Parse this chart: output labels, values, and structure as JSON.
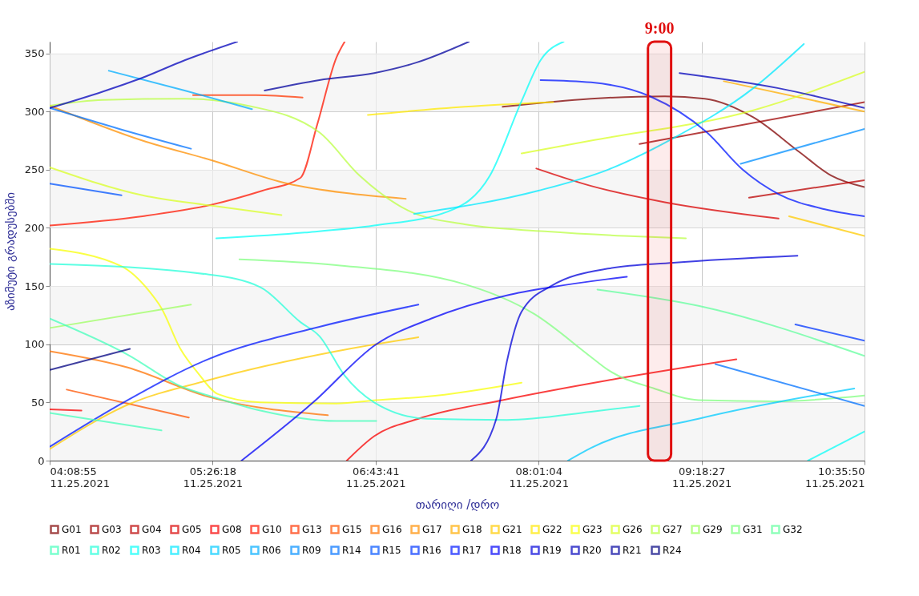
{
  "chart_data": {
    "type": "line",
    "xlabel": "თარიღი /დრო",
    "ylabel": "აზიმუტი გრადუსებში",
    "xlim": [
      "2021-11-25T04:08:55",
      "2021-11-25T10:35:50"
    ],
    "ylim": [
      0,
      360
    ],
    "xticks": [
      {
        "value": "2021-11-25T04:08:55",
        "label": "04:08:55\n11.25.2021"
      },
      {
        "value": "2021-11-25T05:26:18",
        "label": "05:26:18\n11.25.2021"
      },
      {
        "value": "2021-11-25T06:43:41",
        "label": "06:43:41\n11.25.2021"
      },
      {
        "value": "2021-11-25T08:01:04",
        "label": "08:01:04\n11.25.2021"
      },
      {
        "value": "2021-11-25T09:18:27",
        "label": "09:18:27\n11.25.2021"
      },
      {
        "value": "2021-11-25T10:35:50",
        "label": "10:35:50\n11.25.2021"
      }
    ],
    "yticks": [
      0,
      50,
      100,
      150,
      200,
      250,
      300,
      350
    ],
    "grid": true,
    "legend": "bottom",
    "bands": [
      {
        "axis": "y",
        "from": 0,
        "to": 50,
        "color": "#f2f2f2"
      },
      {
        "axis": "y",
        "from": 100,
        "to": 150,
        "color": "#f2f2f2"
      },
      {
        "axis": "y",
        "from": 200,
        "to": 250,
        "color": "#f2f2f2"
      },
      {
        "axis": "y",
        "from": 300,
        "to": 350,
        "color": "#f2f2f2"
      },
      {
        "axis": "x",
        "from": "2021-11-25T08:53",
        "to": "2021-11-25T09:04",
        "label": "9:00",
        "color": "#e01010"
      }
    ],
    "series": [
      {
        "name": "G01",
        "color": "#800000",
        "x": [
          "2021-11-25T07:44",
          "2021-11-25T08:26",
          "2021-11-25T09:01",
          "2021-11-25T09:20",
          "2021-11-25T09:43",
          "2021-11-25T10:05",
          "2021-11-25T10:20",
          "2021-11-25T10:35:50"
        ],
        "values": [
          304,
          311,
          313,
          311,
          295,
          265,
          245,
          235
        ]
      },
      {
        "name": "G03",
        "color": "#9e0000",
        "x": [
          "2021-11-25T08:49",
          "2021-11-25T10:35:50"
        ],
        "values": [
          272,
          308
        ]
      },
      {
        "name": "G04",
        "color": "#bb0000",
        "x": [
          "2021-11-25T09:41",
          "2021-11-25T10:35:50"
        ],
        "values": [
          226,
          241
        ]
      },
      {
        "name": "G05",
        "color": "#da0000",
        "x": [
          "2021-11-25T08:00",
          "2021-11-25T08:26",
          "2021-11-25T09:01",
          "2021-11-25T09:55"
        ],
        "values": [
          251,
          236,
          222,
          208
        ]
      },
      {
        "name": "G08",
        "color": "#f80000",
        "x": [
          "2021-11-25T06:30",
          "2021-11-25T06:43",
          "2021-11-25T07:04",
          "2021-11-25T07:44",
          "2021-11-25T08:34",
          "2021-11-25T09:35"
        ],
        "values": [
          0,
          21,
          36,
          52,
          69,
          87
        ]
      },
      {
        "name": "G10",
        "color": "#ff1600",
        "x": [
          "2021-11-25T04:09",
          "2021-11-25T04:53",
          "2021-11-25T05:26",
          "2021-11-25T05:50",
          "2021-11-25T06:08",
          "2021-11-25T06:16",
          "2021-11-25T06:25",
          "2021-11-25T06:29"
        ],
        "values": [
          202,
          210,
          220,
          232,
          243,
          289,
          346,
          360
        ]
      },
      {
        "name": "G13",
        "color": "#ff3500",
        "x": [
          "2021-11-25T05:17",
          "2021-11-25T05:47",
          "2021-11-25T06:09"
        ],
        "values": [
          314,
          314,
          312
        ]
      },
      {
        "name": "G15",
        "color": "#ff5300",
        "x": [
          "2021-11-25T04:17",
          "2021-11-25T05:15"
        ],
        "values": [
          61,
          37
        ]
      },
      {
        "name": "G16",
        "color": "#ff7100",
        "x": [
          "2021-11-25T04:09",
          "2021-11-25T04:46",
          "2021-11-25T05:24",
          "2021-11-25T06:21"
        ],
        "values": [
          94,
          80,
          55,
          39
        ]
      },
      {
        "name": "G17",
        "color": "#ff8f00",
        "x": [
          "2021-11-25T04:09",
          "2021-11-25T04:53",
          "2021-11-25T05:26",
          "2021-11-25T06:02",
          "2021-11-25T06:29",
          "2021-11-25T06:58"
        ],
        "values": [
          305,
          275,
          258,
          238,
          230,
          225
        ]
      },
      {
        "name": "G18",
        "color": "#ffad00",
        "x": [
          "2021-11-25T09:29",
          "2021-11-25T10:35:50"
        ],
        "values": [
          326,
          300
        ]
      },
      {
        "name": "G21",
        "color": "#ffcb00",
        "x": [
          "2021-11-25T04:09",
          "2021-11-25T04:46",
          "2021-11-25T05:24",
          "2021-11-25T06:25",
          "2021-11-25T07:04"
        ],
        "values": [
          10,
          48,
          69,
          94,
          106
        ]
      },
      {
        "name": "G22",
        "color": "#ffe900",
        "x": [
          "2021-11-25T06:40",
          "2021-11-25T07:26",
          "2021-11-25T08:08"
        ],
        "values": [
          297,
          304,
          308
        ]
      },
      {
        "name": "G23",
        "color": "#f8ff07",
        "x": [
          "2021-11-25T04:09",
          "2021-11-25T04:43",
          "2021-11-25T04:56",
          "2021-11-25T05:02",
          "2021-11-25T05:11",
          "2021-11-25T05:19",
          "2021-11-25T05:29",
          "2021-11-25T05:49",
          "2021-11-25T06:25",
          "2021-11-25T06:44",
          "2021-11-25T07:08",
          "2021-11-25T07:53"
        ],
        "values": [
          182,
          167,
          146,
          131,
          96,
          76,
          57,
          50,
          49,
          52,
          55,
          67
        ]
      },
      {
        "name": "G26",
        "color": "#daff25",
        "x": [
          "2021-11-25T07:53",
          "2021-11-25T08:26",
          "2021-11-25T09:43",
          "2021-11-25T10:35:50"
        ],
        "values": [
          264,
          275,
          301,
          334
        ]
      },
      {
        "name": "G27",
        "color": "#bbff44",
        "x": [
          "2021-11-25T04:09",
          "2021-11-25T04:34",
          "2021-11-25T05:13",
          "2021-11-25T05:43",
          "2021-11-25T06:17",
          "2021-11-25T06:36",
          "2021-11-25T06:59",
          "2021-11-25T07:26",
          "2021-11-25T08:04",
          "2021-11-25T08:42",
          "2021-11-25T09:11"
        ],
        "values": [
          305,
          310,
          311,
          305,
          282,
          245,
          215,
          203,
          197,
          193,
          191
        ]
      },
      {
        "name": "G29",
        "color": "#9eff62",
        "x": [
          "2021-11-25T04:09",
          "2021-11-25T05:16"
        ],
        "values": [
          114,
          134
        ]
      },
      {
        "name": "G31",
        "color": "#80ff80",
        "x": [
          "2021-11-25T05:39",
          "2021-11-25T06:25",
          "2021-11-25T07:27",
          "2021-11-25T07:59",
          "2021-11-25T08:26",
          "2021-11-25T08:34",
          "2021-11-25T08:56",
          "2021-11-25T09:17",
          "2021-11-25T09:54",
          "2021-11-25T10:35:50"
        ],
        "values": [
          173,
          168,
          151,
          126,
          89,
          78,
          62,
          52,
          51,
          56
        ]
      },
      {
        "name": "G32",
        "color": "#62ff9e",
        "x": [
          "2021-11-25T08:29",
          "2021-11-25T09:17",
          "2021-11-25T10:35:50"
        ],
        "values": [
          147,
          133,
          90
        ]
      },
      {
        "name": "R01",
        "color": "#44ffbb",
        "x": [
          "2021-11-25T04:09",
          "2021-11-25T04:46",
          "2021-11-25T05:11",
          "2021-11-25T05:26",
          "2021-11-25T05:49",
          "2021-11-25T06:25",
          "2021-11-25T06:44"
        ],
        "values": [
          122,
          91,
          64,
          55,
          43,
          34,
          34
        ]
      },
      {
        "name": "R02",
        "color": "#25ffda",
        "x": [
          "2021-11-25T04:09",
          "2021-11-25T05:24",
          "2021-11-25T05:49",
          "2021-11-25T06:08",
          "2021-11-25T06:17",
          "2021-11-25T06:29",
          "2021-11-25T06:43",
          "2021-11-25T07:08",
          "2021-11-25T07:46",
          "2021-11-25T08:26",
          "2021-11-25T08:49"
        ],
        "values": [
          169,
          160,
          149,
          119,
          107,
          73,
          50,
          36,
          35,
          42,
          47
        ]
      },
      {
        "name": "R03",
        "color": "#07fff8",
        "x": [
          "2021-11-25T05:28",
          "2021-11-25T06:10",
          "2021-11-25T06:43",
          "2021-11-25T07:18",
          "2021-11-25T07:38",
          "2021-11-25T07:53",
          "2021-11-25T08:02",
          "2021-11-25T08:13"
        ],
        "values": [
          191,
          196,
          202,
          214,
          245,
          309,
          344,
          360
        ]
      },
      {
        "name": "R04",
        "color": "#00e9ff",
        "x": [
          "2021-11-25T07:02",
          "2021-11-25T08:01",
          "2021-11-25T08:34",
          "2021-11-25T09:05",
          "2021-11-25T09:43",
          "2021-11-25T10:07"
        ],
        "values": [
          212,
          232,
          250,
          277,
          320,
          358
        ]
      },
      {
        "name": "R05",
        "color": "#00cbff",
        "x": [
          "2021-11-25T08:15",
          "2021-11-25T08:26",
          "2021-11-25T09:17",
          "2021-11-25T10:31"
        ],
        "values": [
          0,
          11,
          36,
          62
        ]
      },
      {
        "name": "R06",
        "color": "#00adff",
        "x": [
          "2021-11-25T04:37",
          "2021-11-25T05:13",
          "2021-11-25T05:45"
        ],
        "values": [
          335,
          318,
          302
        ]
      },
      {
        "name": "R09",
        "color": "#008fff",
        "x": [
          "2021-11-25T09:37",
          "2021-11-25T10:35:50"
        ],
        "values": [
          255,
          285
        ]
      },
      {
        "name": "R14",
        "color": "#0071ff",
        "x": [
          "2021-11-25T04:09",
          "2021-11-25T04:42",
          "2021-11-25T05:16"
        ],
        "values": [
          303,
          285,
          268
        ]
      },
      {
        "name": "R15",
        "color": "#0053ff",
        "x": [
          "2021-11-25T04:09",
          "2021-11-25T04:43"
        ],
        "values": [
          238,
          228
        ]
      },
      {
        "name": "R16",
        "color": "#0035ff",
        "x": [
          "2021-11-25T10:03",
          "2021-11-25T10:35:50"
        ],
        "values": [
          117,
          103
        ]
      },
      {
        "name": "R17",
        "color": "#0016ff",
        "x": [
          "2021-11-25T04:09",
          "2021-11-25T04:44",
          "2021-11-25T05:24",
          "2021-11-25T06:17",
          "2021-11-25T07:04"
        ],
        "values": [
          12,
          50,
          87,
          115,
          134
        ]
      },
      {
        "name": "R18",
        "color": "#0000f8",
        "x": [
          "2021-11-25T05:40",
          "2021-11-25T06:14",
          "2021-11-25T06:44",
          "2021-11-25T07:10",
          "2021-11-25T07:46",
          "2021-11-25T08:07",
          "2021-11-25T08:34",
          "2021-11-25T08:43"
        ],
        "values": [
          0,
          50,
          100,
          122,
          142,
          149,
          156,
          158
        ]
      },
      {
        "name": "R19",
        "color": "#0000da",
        "x": [
          "2021-11-25T07:29",
          "2021-11-25T07:41",
          "2021-11-25T07:46",
          "2021-11-25T07:53",
          "2021-11-25T08:07",
          "2021-11-25T08:34",
          "2021-11-25T09:05",
          "2021-11-25T10:04"
        ],
        "values": [
          0,
          36,
          85,
          128,
          150,
          165,
          170,
          176
        ]
      },
      {
        "name": "R20",
        "color": "#0000bb",
        "x": [
          "2021-11-25T04:09",
          "2021-11-25T04:34",
          "2021-11-25T04:53",
          "2021-11-25T05:13",
          "2021-11-25T05:38"
        ],
        "values": [
          303,
          317,
          329,
          344,
          360
        ]
      },
      {
        "name": "R21",
        "color": "#00009e",
        "x": [
          "2021-11-25T05:51",
          "2021-11-25T06:17",
          "2021-11-25T06:43",
          "2021-11-25T07:03",
          "2021-11-25T07:28"
        ],
        "values": [
          318,
          327,
          333,
          342,
          360
        ]
      },
      {
        "name": "R24",
        "color": "#000080",
        "x": [
          "2021-11-25T04:09",
          "2021-11-25T04:47"
        ],
        "values": [
          78,
          96
        ]
      },
      {
        "color": "#daff25",
        "x": [
          "2021-11-25T04:09",
          "2021-11-25T04:53",
          "2021-11-25T05:26",
          "2021-11-25T05:59"
        ],
        "values": [
          252,
          228,
          219,
          211
        ]
      },
      {
        "color": "#0000bb",
        "x": [
          "2021-11-25T09:08",
          "2021-11-25T09:55",
          "2021-11-25T10:35:50"
        ],
        "values": [
          333,
          320,
          303
        ]
      },
      {
        "color": "#0016ff",
        "x": [
          "2021-11-25T08:02",
          "2021-11-25T08:26",
          "2021-11-25T08:54",
          "2021-11-25T09:21",
          "2021-11-25T09:38",
          "2021-11-25T09:55",
          "2021-11-25T10:17",
          "2021-11-25T10:35:50"
        ],
        "values": [
          327,
          325,
          313,
          282,
          250,
          229,
          216,
          210
        ]
      },
      {
        "color": "#ffcb00",
        "x": [
          "2021-11-25T10:00",
          "2021-11-25T10:35:50"
        ],
        "values": [
          210,
          193
        ]
      },
      {
        "color": "#f80000",
        "x": [
          "2021-11-25T04:09",
          "2021-11-25T04:24"
        ],
        "values": [
          44,
          43
        ]
      },
      {
        "color": "#44ffbb",
        "x": [
          "2021-11-25T04:09",
          "2021-11-25T05:02"
        ],
        "values": [
          41,
          26
        ]
      },
      {
        "color": "#0071ff",
        "x": [
          "2021-11-25T09:25",
          "2021-11-25T10:35:50"
        ],
        "values": [
          83,
          47
        ]
      },
      {
        "color": "#07fff8",
        "x": [
          "2021-11-25T10:09",
          "2021-11-25T10:35:50"
        ],
        "values": [
          0,
          25
        ]
      }
    ]
  }
}
